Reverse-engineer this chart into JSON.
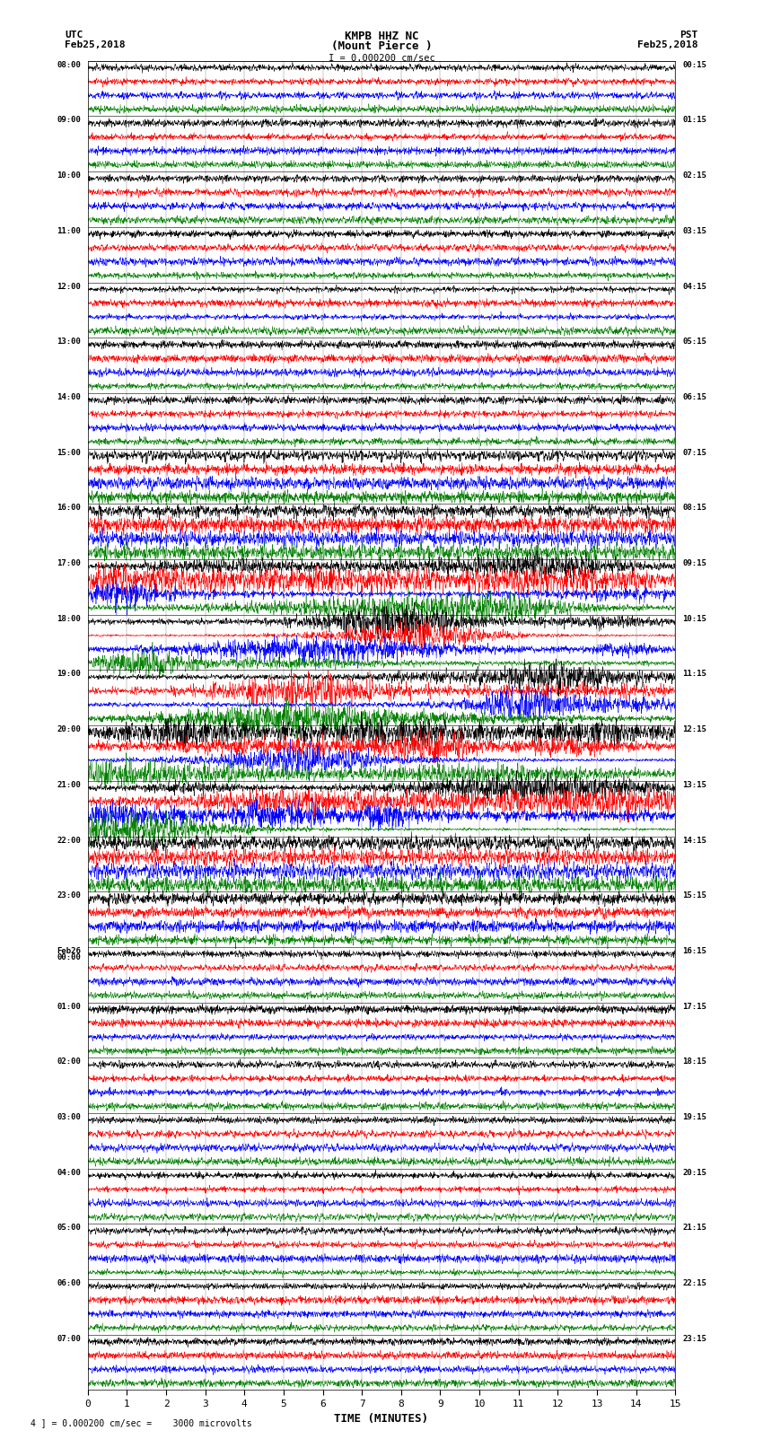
{
  "title_line1": "KMPB HHZ NC",
  "title_line2": "(Mount Pierce )",
  "scale_text": "I = 0.000200 cm/sec",
  "left_label_line1": "UTC",
  "left_label_line2": "Feb25,2018",
  "right_label_line1": "PST",
  "right_label_line2": "Feb25,2018",
  "bottom_label": "TIME (MINUTES)",
  "scale_annotation": "4 ] = 0.000200 cm/sec =    3000 microvolts",
  "left_times": [
    "08:00",
    "09:00",
    "10:00",
    "11:00",
    "12:00",
    "13:00",
    "14:00",
    "15:00",
    "16:00",
    "17:00",
    "18:00",
    "19:00",
    "20:00",
    "21:00",
    "22:00",
    "23:00",
    "Feb26\n00:00",
    "01:00",
    "02:00",
    "03:00",
    "04:00",
    "05:00",
    "06:00",
    "07:00"
  ],
  "right_times": [
    "00:15",
    "01:15",
    "02:15",
    "03:15",
    "04:15",
    "05:15",
    "06:15",
    "07:15",
    "08:15",
    "09:15",
    "10:15",
    "11:15",
    "12:15",
    "13:15",
    "14:15",
    "15:15",
    "16:15",
    "17:15",
    "18:15",
    "19:15",
    "20:15",
    "21:15",
    "22:15",
    "23:15"
  ],
  "num_rows": 24,
  "traces_per_row": 4,
  "colors": [
    "black",
    "red",
    "blue",
    "green"
  ],
  "xlim": [
    0,
    15
  ],
  "xticks": [
    0,
    1,
    2,
    3,
    4,
    5,
    6,
    7,
    8,
    9,
    10,
    11,
    12,
    13,
    14,
    15
  ],
  "bg_color": "white",
  "plot_bg_color": "white",
  "noise_seed": 42
}
